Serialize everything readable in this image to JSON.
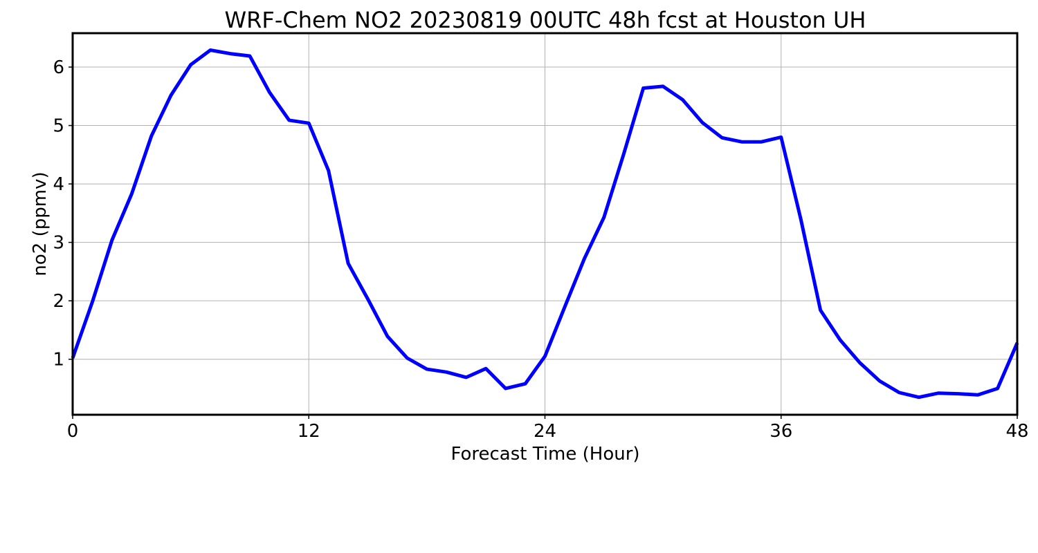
{
  "chart_data": {
    "type": "line",
    "title": "WRF-Chem NO2  20230819 00UTC 48h fcst at Houston UH",
    "xlabel": "Forecast Time (Hour)",
    "ylabel": "no2  (ppmv)",
    "xlim": [
      0,
      48
    ],
    "ylim": [
      0.05,
      6.58
    ],
    "xticks": [
      0,
      12,
      24,
      36,
      48
    ],
    "yticks": [
      1,
      2,
      3,
      4,
      5,
      6
    ],
    "grid": true,
    "legend": "none",
    "series": [
      {
        "color": "#0000ff",
        "x": [
          0,
          1,
          2,
          3,
          4,
          5,
          6,
          7,
          8,
          9,
          10,
          11,
          12,
          13,
          14,
          15,
          16,
          17,
          18,
          19,
          20,
          21,
          22,
          23,
          24,
          25,
          26,
          27,
          28,
          29,
          30,
          31,
          32,
          33,
          34,
          35,
          36,
          37,
          38,
          39,
          40,
          41,
          42,
          43,
          44,
          45,
          46,
          47,
          48
        ],
        "y": [
          1.02,
          1.98,
          3.04,
          3.83,
          4.82,
          5.52,
          6.04,
          6.29,
          6.23,
          6.19,
          5.57,
          5.09,
          5.04,
          4.23,
          2.64,
          2.03,
          1.39,
          1.02,
          0.83,
          0.78,
          0.69,
          0.84,
          0.5,
          0.58,
          1.05,
          1.89,
          2.72,
          3.43,
          4.51,
          5.64,
          5.67,
          5.44,
          5.05,
          4.79,
          4.72,
          4.72,
          4.8,
          3.4,
          1.84,
          1.33,
          0.94,
          0.63,
          0.43,
          0.35,
          0.42,
          0.41,
          0.39,
          0.5,
          1.28
        ]
      }
    ]
  }
}
